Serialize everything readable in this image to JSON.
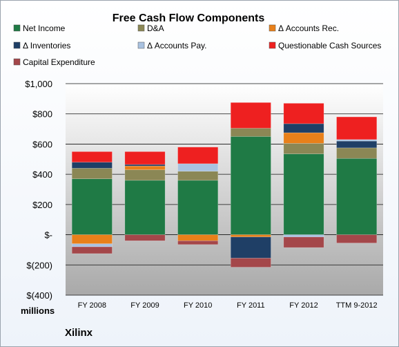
{
  "chart_data": {
    "type": "bar",
    "stacked": true,
    "title": "Free Cash Flow Components",
    "categories": [
      "FY 2008",
      "FY 2009",
      "FY 2010",
      "FY 2011",
      "FY 2012",
      "TTM 9-2012"
    ],
    "ylim": [
      -400,
      1000
    ],
    "yticks": [
      {
        "value": 1000,
        "label": "$1,000"
      },
      {
        "value": 800,
        "label": "$800"
      },
      {
        "value": 600,
        "label": "$600"
      },
      {
        "value": 400,
        "label": "$400"
      },
      {
        "value": 200,
        "label": "$200"
      },
      {
        "value": 0,
        "label": "$-"
      },
      {
        "value": -200,
        "label": "$(200)"
      },
      {
        "value": -400,
        "label": "$(400)"
      }
    ],
    "units_label": "millions",
    "company_label": "Xilinx",
    "grid": true,
    "legend_position": "top",
    "series": [
      {
        "name": "Net Income",
        "color": "#1f7a45",
        "values": [
          370,
          360,
          360,
          650,
          535,
          505
        ]
      },
      {
        "name": "D&A",
        "color": "#8b8755",
        "values": [
          70,
          70,
          60,
          55,
          70,
          70
        ]
      },
      {
        "name": "Δ Accounts Rec.",
        "color": "#e8801a",
        "values": [
          -60,
          25,
          -40,
          -15,
          70,
          0
        ]
      },
      {
        "name": "Δ Inventories",
        "color": "#1f3f66",
        "values": [
          40,
          10,
          0,
          -140,
          60,
          45
        ]
      },
      {
        "name": "Δ Accounts Pay.",
        "color": "#a9c2e0",
        "values": [
          -20,
          0,
          50,
          0,
          -15,
          10
        ]
      },
      {
        "name": "Questionable Cash Sources",
        "color": "#ee2020",
        "values": [
          70,
          85,
          110,
          170,
          135,
          150
        ]
      },
      {
        "name": "Capital Expenditure",
        "color": "#a4474a",
        "values": [
          -45,
          -40,
          -25,
          -60,
          -70,
          -55
        ]
      }
    ]
  }
}
